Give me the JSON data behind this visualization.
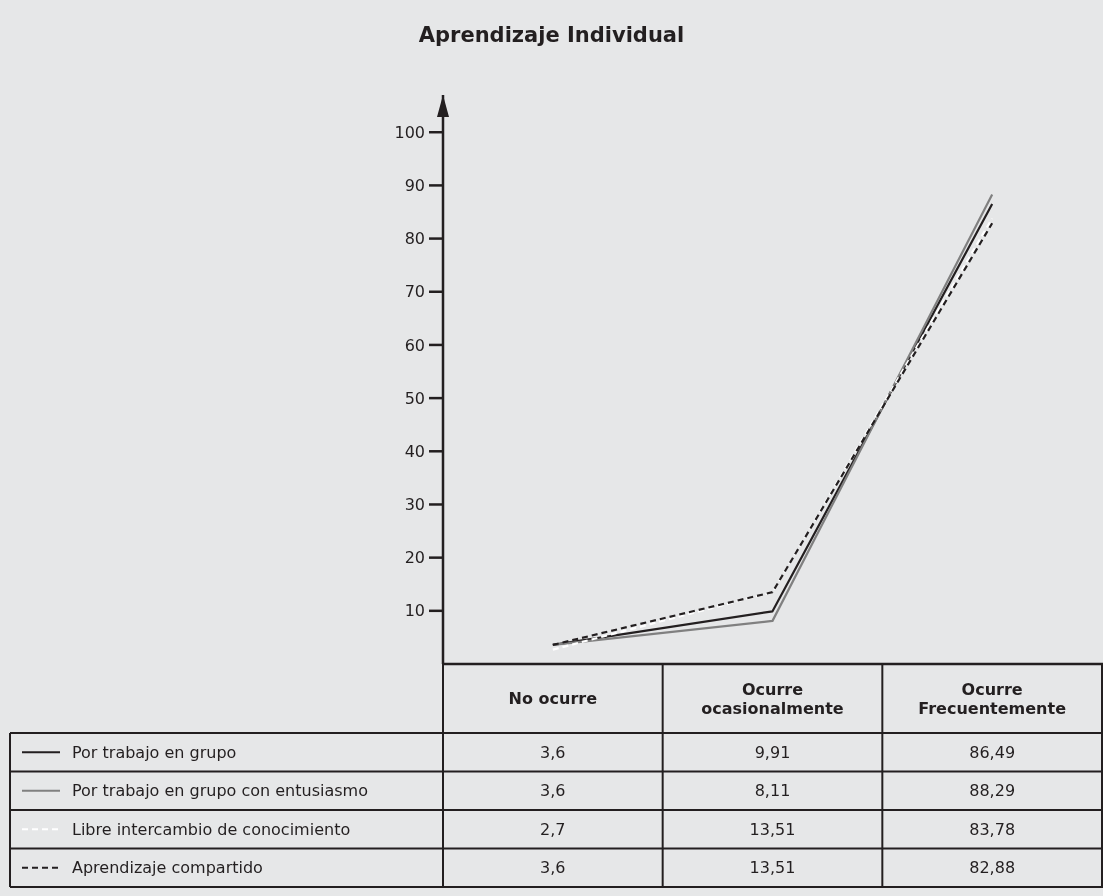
{
  "chart_data": {
    "type": "line",
    "title": "Aprendizaje Individual",
    "categories": [
      "No ocurre",
      "Ocurre ocasionalmente",
      "Ocurre Frecuentemente"
    ],
    "series": [
      {
        "name": "Por trabajo en grupo",
        "color": "#231f20",
        "line_style": "solid",
        "values": [
          3.6,
          9.91,
          86.49
        ],
        "value_labels": [
          "3,6",
          "9,91",
          "86,49"
        ]
      },
      {
        "name": "Por trabajo en grupo con entusiasmo",
        "color": "#808080",
        "line_style": "solid",
        "values": [
          3.6,
          8.11,
          88.29
        ],
        "value_labels": [
          "3,6",
          "8,11",
          "88,29"
        ]
      },
      {
        "name": "Libre intercambio de conocimiento",
        "color": "#ffffff",
        "line_style": "dashed",
        "values": [
          2.7,
          13.51,
          83.78
        ],
        "value_labels": [
          "2,7",
          "13,51",
          "83,78"
        ]
      },
      {
        "name": "Aprendizaje compartido",
        "color": "#231f20",
        "line_style": "dashed",
        "values": [
          3.6,
          13.51,
          82.88
        ],
        "value_labels": [
          "3,6",
          "13,51",
          "82,88"
        ]
      }
    ],
    "ylim": [
      0,
      107
    ],
    "yticks": [
      10,
      20,
      30,
      40,
      50,
      60,
      70,
      80,
      90,
      100
    ],
    "legend": "bottom left",
    "marker": "none",
    "grid": false
  }
}
